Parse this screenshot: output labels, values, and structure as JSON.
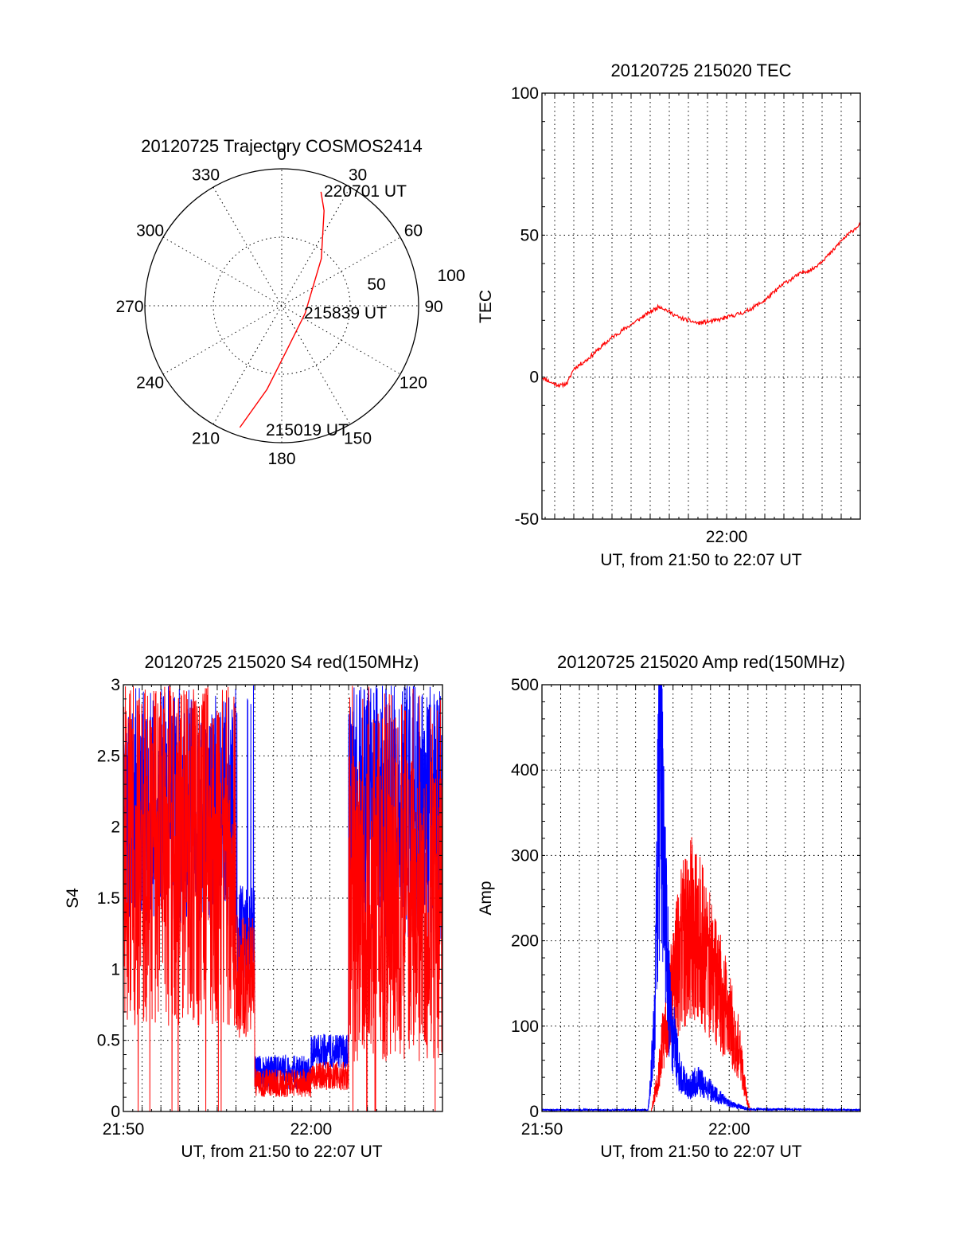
{
  "colors": {
    "red_series": "#ff0000",
    "blue_series": "#0000ff",
    "axes": "#000000",
    "background": "#ffffff"
  },
  "chart_data": [
    {
      "type": "polar",
      "title": "20120725 Trajectory COSMOS2414",
      "azimuth_labels": [
        "0",
        "30",
        "60",
        "90",
        "120",
        "150",
        "180",
        "210",
        "240",
        "270",
        "300",
        "330"
      ],
      "ring_labels": [
        "50",
        "100"
      ],
      "grid": true,
      "track": {
        "points": [
          {
            "az": 199,
            "r": 94
          },
          {
            "az": 190,
            "r": 62
          },
          {
            "az": 175,
            "r": 34
          },
          {
            "az": 108,
            "r": 18
          },
          {
            "az": 40,
            "r": 45
          },
          {
            "az": 24,
            "r": 76
          },
          {
            "az": 19,
            "r": 88
          }
        ],
        "labels": [
          {
            "text": "220701 UT",
            "at": "end"
          },
          {
            "text": "215839 UT",
            "at": "middle"
          },
          {
            "text": "215019 UT",
            "at": "start"
          }
        ]
      }
    },
    {
      "type": "line",
      "title": "20120725 215020 TEC",
      "xlabel": "UT, from 21:50 to 22:07 UT",
      "ylabel": "TEC",
      "xlim": [
        "21:50:20",
        "22:07:00"
      ],
      "ylim": [
        -50,
        100
      ],
      "yticks": [
        "100",
        "50",
        "0",
        "-50"
      ],
      "xticks": [
        {
          "t": "22:00",
          "label": "22:00"
        }
      ],
      "grid": true,
      "series": [
        {
          "color": "#ff0000",
          "points": [
            [
              "21:50:20",
              0
            ],
            [
              "21:50:50",
              -2
            ],
            [
              "21:51:20",
              -3
            ],
            [
              "21:51:40",
              -2
            ],
            [
              "21:52:00",
              3
            ],
            [
              "21:52:40",
              6
            ],
            [
              "21:53:20",
              10
            ],
            [
              "21:54:00",
              14
            ],
            [
              "21:54:40",
              17
            ],
            [
              "21:55:20",
              20
            ],
            [
              "21:56:00",
              23
            ],
            [
              "21:56:30",
              25
            ],
            [
              "21:57:00",
              23
            ],
            [
              "21:57:30",
              21
            ],
            [
              "21:58:00",
              20
            ],
            [
              "21:58:30",
              19
            ],
            [
              "21:59:00",
              19.5
            ],
            [
              "21:59:30",
              20
            ],
            [
              "22:00:00",
              21
            ],
            [
              "22:00:30",
              22
            ],
            [
              "22:01:00",
              23
            ],
            [
              "22:01:30",
              25
            ],
            [
              "22:02:00",
              27
            ],
            [
              "22:02:30",
              30
            ],
            [
              "22:03:00",
              33
            ],
            [
              "22:03:30",
              35
            ],
            [
              "22:04:00",
              37
            ],
            [
              "22:04:30",
              38
            ],
            [
              "22:05:00",
              41
            ],
            [
              "22:05:30",
              44
            ],
            [
              "22:06:00",
              48
            ],
            [
              "22:06:30",
              51
            ],
            [
              "22:07:00",
              54
            ]
          ]
        }
      ]
    },
    {
      "type": "line",
      "title": "20120725 215020 S4 red(150MHz)",
      "xlabel": "UT, from 21:50 to 22:07 UT",
      "ylabel": "S4",
      "xlim": [
        "21:50:00",
        "22:07:00"
      ],
      "ylim": [
        0,
        3
      ],
      "yticks": [
        "3",
        "2.5",
        "2",
        "1.5",
        "1",
        "0.5",
        "0"
      ],
      "xticks": [
        {
          "t": "21:50",
          "label": "21:50"
        },
        {
          "t": "22:00",
          "label": "22:00"
        }
      ],
      "grid": true,
      "series": [
        {
          "color": "#0000ff",
          "segments": [
            {
              "from": "21:50:00",
              "to": "21:56:00",
              "low": 1.3,
              "high": 2.8
            },
            {
              "from": "21:56:00",
              "to": "21:57:00",
              "low": 0.9,
              "high": 1.6
            },
            {
              "from": "21:57:00",
              "to": "22:00:00",
              "low": 0.15,
              "high": 0.4
            },
            {
              "from": "22:00:00",
              "to": "22:02:00",
              "low": 0.3,
              "high": 0.55
            },
            {
              "from": "22:02:00",
              "to": "22:07:00",
              "low": 1.2,
              "high": 3.0
            }
          ]
        },
        {
          "color": "#ff0000",
          "segments": [
            {
              "from": "21:50:00",
              "to": "21:56:00",
              "low": 0.6,
              "high": 3.0
            },
            {
              "from": "21:56:00",
              "to": "21:57:00",
              "low": 0.5,
              "high": 1.4
            },
            {
              "from": "21:57:00",
              "to": "22:00:00",
              "low": 0.1,
              "high": 0.3
            },
            {
              "from": "22:00:00",
              "to": "22:02:00",
              "low": 0.15,
              "high": 0.35
            },
            {
              "from": "22:02:00",
              "to": "22:07:00",
              "low": 0.35,
              "high": 2.5
            }
          ]
        }
      ]
    },
    {
      "type": "line",
      "title": "20120725 215020 Amp red(150MHz)",
      "xlabel": "UT, from 21:50 to 22:07 UT",
      "ylabel": "Amp",
      "xlim": [
        "21:50:00",
        "22:07:00"
      ],
      "ylim": [
        0,
        500
      ],
      "yticks": [
        "500",
        "400",
        "300",
        "200",
        "100",
        "0"
      ],
      "xticks": [
        {
          "t": "21:50",
          "label": "21:50"
        },
        {
          "t": "22:00",
          "label": "22:00"
        }
      ],
      "grid": true,
      "series": [
        {
          "color": "#ff0000",
          "points": [
            [
              "21:55:50",
              0
            ],
            [
              "21:56:10",
              40
            ],
            [
              "21:56:40",
              120
            ],
            [
              "21:57:00",
              160
            ],
            [
              "21:57:30",
              210
            ],
            [
              "21:58:00",
              230
            ],
            [
              "21:58:30",
              220
            ],
            [
              "21:59:00",
              180
            ],
            [
              "21:59:30",
              150
            ],
            [
              "22:00:00",
              120
            ],
            [
              "22:00:30",
              80
            ],
            [
              "22:01:00",
              10
            ],
            [
              "22:01:10",
              0
            ]
          ]
        },
        {
          "color": "#0000ff",
          "points": [
            [
              "21:50:00",
              2
            ],
            [
              "21:55:40",
              2
            ],
            [
              "21:56:00",
              100
            ],
            [
              "21:56:10",
              320
            ],
            [
              "21:56:20",
              430
            ],
            [
              "21:56:30",
              300
            ],
            [
              "21:56:50",
              120
            ],
            [
              "21:57:20",
              50
            ],
            [
              "21:57:50",
              30
            ],
            [
              "21:58:20",
              40
            ],
            [
              "21:58:50",
              30
            ],
            [
              "21:59:20",
              20
            ],
            [
              "22:00:00",
              10
            ],
            [
              "22:01:00",
              3
            ],
            [
              "22:07:00",
              2
            ]
          ]
        }
      ]
    }
  ]
}
